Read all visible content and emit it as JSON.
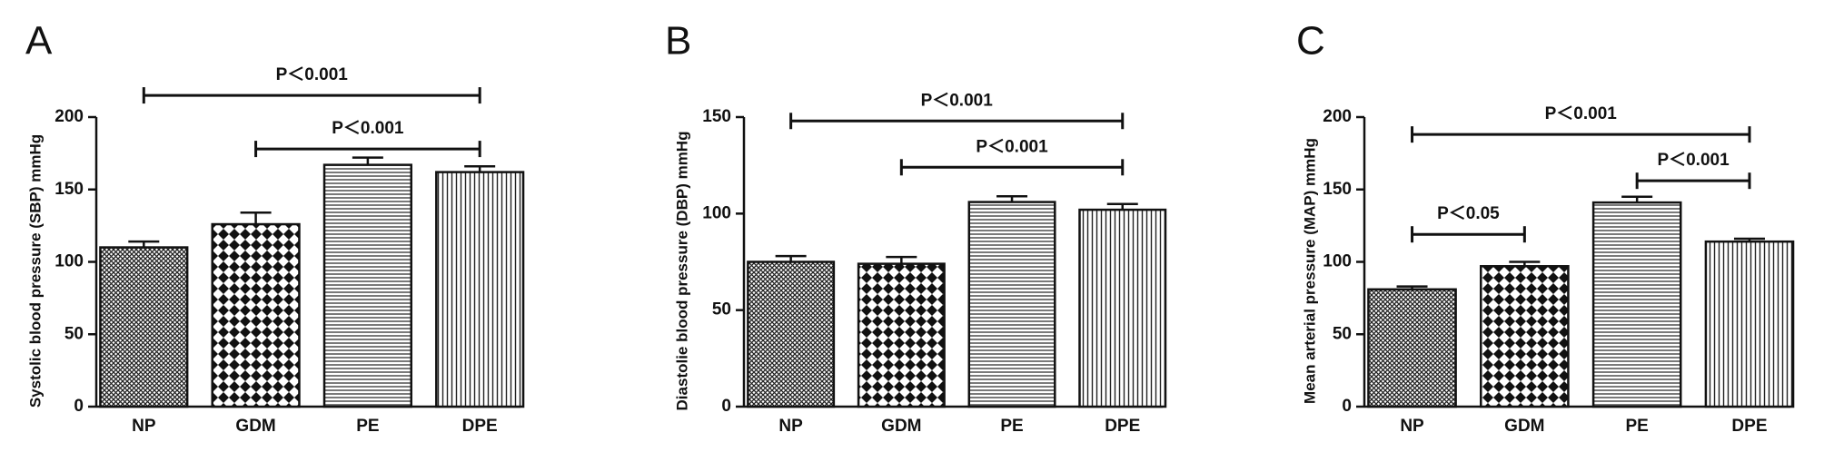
{
  "chart_data": [
    {
      "type": "bar",
      "panel_label": "A",
      "y_label": "Systolic blood pressure (SBP) mmHg",
      "categories": [
        "NP",
        "GDM",
        "PE",
        "DPE"
      ],
      "values": [
        110,
        126,
        167,
        162
      ],
      "errors": [
        4,
        8,
        5,
        4
      ],
      "patterns": [
        "crosshatch",
        "checker",
        "horizontal",
        "vertical"
      ],
      "ylim": [
        0,
        200
      ],
      "yticks": [
        0,
        50,
        100,
        150,
        200
      ],
      "annotations": [
        {
          "text": "P＜0.001",
          "from": 0,
          "to": 3,
          "y": 215
        },
        {
          "text": "P＜0.001",
          "from": 1,
          "to": 3,
          "y": 178
        }
      ]
    },
    {
      "type": "bar",
      "panel_label": "B",
      "y_label": "Diastolie blood pressure (DBP) mmHg",
      "categories": [
        "NP",
        "GDM",
        "PE",
        "DPE"
      ],
      "values": [
        75,
        74,
        106,
        102
      ],
      "errors": [
        3,
        3.5,
        3,
        3
      ],
      "patterns": [
        "crosshatch",
        "checker",
        "horizontal",
        "vertical"
      ],
      "ylim": [
        0,
        150
      ],
      "yticks": [
        0,
        50,
        100,
        150
      ],
      "annotations": [
        {
          "text": "P＜0.001",
          "from": 0,
          "to": 3,
          "y": 148
        },
        {
          "text": "P＜0.001",
          "from": 1,
          "to": 3,
          "y": 124
        }
      ]
    },
    {
      "type": "bar",
      "panel_label": "C",
      "y_label": "Mean arterial pressure (MAP) mmHg",
      "categories": [
        "NP",
        "GDM",
        "PE",
        "DPE"
      ],
      "values": [
        81,
        97,
        141,
        114
      ],
      "errors": [
        2,
        3,
        4,
        2
      ],
      "patterns": [
        "crosshatch",
        "checker",
        "horizontal",
        "vertical"
      ],
      "ylim": [
        0,
        200
      ],
      "yticks": [
        0,
        50,
        100,
        150,
        200
      ],
      "annotations": [
        {
          "text": "P＜0.001",
          "from": 0,
          "to": 3,
          "y": 188
        },
        {
          "text": "P＜0.05",
          "from": 0,
          "to": 1,
          "y": 119
        },
        {
          "text": "P＜0.001",
          "from": 2,
          "to": 3,
          "y": 156
        }
      ]
    }
  ]
}
